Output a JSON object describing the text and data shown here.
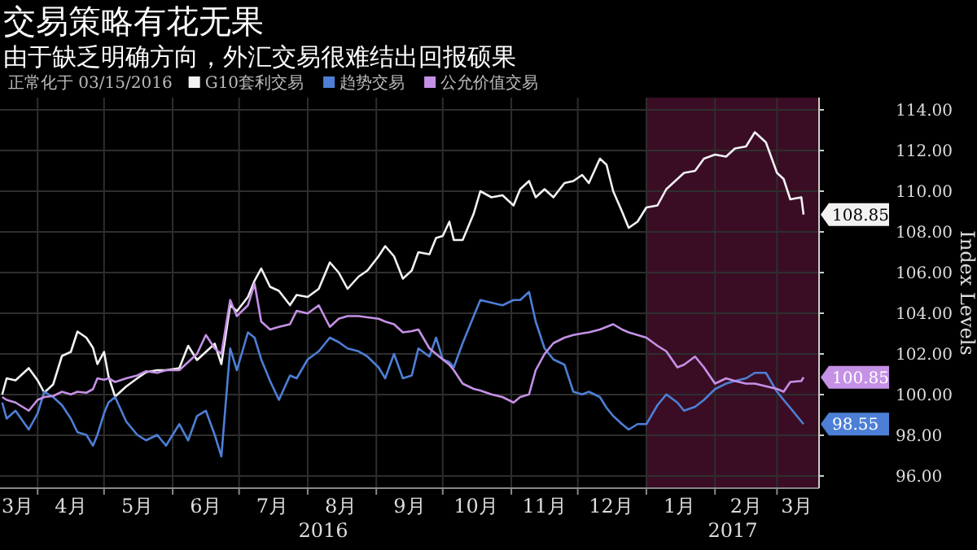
{
  "chart_data": {
    "type": "line",
    "title": "交易策略有花无果",
    "subtitle": "由于缺乏明确方向，外汇交易很难结出回报硕果",
    "legend_title": "正常化于 03/15/2016",
    "legend": "top left",
    "grid": true,
    "ylabel": "Index Levels",
    "x": [
      "2016-03-16",
      "2016-03-18",
      "2016-03-22",
      "2016-03-28",
      "2016-04-01",
      "2016-04-04",
      "2016-04-08",
      "2016-04-12",
      "2016-04-16",
      "2016-04-19",
      "2016-04-23",
      "2016-04-26",
      "2016-04-28",
      "2016-05-01",
      "2016-05-03",
      "2016-05-06",
      "2016-05-11",
      "2016-05-16",
      "2016-05-20",
      "2016-05-25",
      "2016-05-29",
      "2016-06-04",
      "2016-06-08",
      "2016-06-12",
      "2016-06-16",
      "2016-06-20",
      "2016-06-23",
      "2016-06-27",
      "2016-06-30",
      "2016-07-05",
      "2016-07-08",
      "2016-07-11",
      "2016-07-15",
      "2016-07-19",
      "2016-07-24",
      "2016-07-27",
      "2016-08-01",
      "2016-08-06",
      "2016-08-11",
      "2016-08-15",
      "2016-08-19",
      "2016-08-24",
      "2016-08-28",
      "2016-09-02",
      "2016-09-05",
      "2016-09-09",
      "2016-09-13",
      "2016-09-17",
      "2016-09-20",
      "2016-09-25",
      "2016-09-28",
      "2016-10-01",
      "2016-10-04",
      "2016-10-06",
      "2016-10-10",
      "2016-10-15",
      "2016-10-18",
      "2016-10-23",
      "2016-10-28",
      "2016-11-02",
      "2016-11-05",
      "2016-11-09",
      "2016-11-12",
      "2016-11-16",
      "2016-11-20",
      "2016-11-25",
      "2016-11-29",
      "2016-12-03",
      "2016-12-06",
      "2016-12-11",
      "2016-12-14",
      "2016-12-17",
      "2016-12-21",
      "2016-12-24",
      "2016-12-28",
      "2017-01-01",
      "2017-01-06",
      "2017-01-10",
      "2017-01-15",
      "2017-01-18",
      "2017-01-23",
      "2017-01-27",
      "2017-02-01",
      "2017-02-06",
      "2017-02-10",
      "2017-02-15",
      "2017-02-19",
      "2017-02-24",
      "2017-03-01",
      "2017-03-04",
      "2017-03-07",
      "2017-03-12",
      "2017-03-13"
    ],
    "xlim": [
      "2016-03-15",
      "2017-03-20"
    ],
    "xticks": [
      {
        "value": "2016-03-23",
        "label": "3月"
      },
      {
        "value": "2016-04-16",
        "label": "4月"
      },
      {
        "value": "2016-05-16",
        "label": "5月"
      },
      {
        "value": "2016-06-16",
        "label": "6月"
      },
      {
        "value": "2016-07-16",
        "label": "7月"
      },
      {
        "value": "2016-08-16",
        "label": "8月"
      },
      {
        "value": "2016-09-16",
        "label": "9月"
      },
      {
        "value": "2016-10-16",
        "label": "10月"
      },
      {
        "value": "2016-11-16",
        "label": "11月"
      },
      {
        "value": "2016-12-16",
        "label": "12月"
      },
      {
        "value": "2017-01-16",
        "label": "1月"
      },
      {
        "value": "2017-02-15",
        "label": "2月"
      },
      {
        "value": "2017-03-10",
        "label": "3月"
      },
      {
        "value": "2016-04-01",
        "label": null
      },
      {
        "value": "2016-05-01",
        "label": null
      },
      {
        "value": "2016-06-01",
        "label": null
      },
      {
        "value": "2016-07-01",
        "label": null
      },
      {
        "value": "2016-08-01",
        "label": null
      },
      {
        "value": "2016-09-01",
        "label": null
      },
      {
        "value": "2016-10-01",
        "label": null
      },
      {
        "value": "2016-11-01",
        "label": null
      },
      {
        "value": "2016-12-01",
        "label": null
      },
      {
        "value": "2017-01-01",
        "label": null
      },
      {
        "value": "2017-02-01",
        "label": null
      },
      {
        "value": "2017-03-01",
        "label": null
      }
    ],
    "ylim": [
      95.4,
      114.6
    ],
    "yticks": [
      {
        "value": 96,
        "label": "96.00"
      },
      {
        "value": 98,
        "label": "98.00"
      },
      {
        "value": 100,
        "label": "100.00"
      },
      {
        "value": 102,
        "label": "102.00"
      },
      {
        "value": 104,
        "label": "104.00"
      },
      {
        "value": 106,
        "label": "106.00"
      },
      {
        "value": 108,
        "label": "108.00"
      },
      {
        "value": 110,
        "label": "110.00"
      },
      {
        "value": 112,
        "label": "112.00"
      },
      {
        "value": 114,
        "label": "114.00"
      }
    ],
    "bands": [
      {
        "axis": "x",
        "from": "2017-01-01",
        "to": "2017-03-20",
        "color": "#3a0d25"
      }
    ],
    "annotations": [
      "2016",
      "2017"
    ],
    "series": [
      {
        "name": "G10套利交易",
        "color": "#f2f2f2",
        "values": [
          100.0,
          100.8,
          100.7,
          101.3,
          100.7,
          100.1,
          100.5,
          101.9,
          102.1,
          103.1,
          102.8,
          102.3,
          101.5,
          102.1,
          100.9,
          99.9,
          100.4,
          100.8,
          101.1,
          101.2,
          101.2,
          101.3,
          102.4,
          101.7,
          102.1,
          102.5,
          101.5,
          104.4,
          104.1,
          104.8,
          105.6,
          106.2,
          105.3,
          105.1,
          104.4,
          104.9,
          104.8,
          105.2,
          106.5,
          106.0,
          105.2,
          105.8,
          106.1,
          106.8,
          107.3,
          106.8,
          105.7,
          106.1,
          107.0,
          106.9,
          107.7,
          107.8,
          108.5,
          107.6,
          107.6,
          108.9,
          110.0,
          109.7,
          109.8,
          109.3,
          110.1,
          110.5,
          109.7,
          110.1,
          109.7,
          110.4,
          110.5,
          110.8,
          110.4,
          111.6,
          111.3,
          110.0,
          109.0,
          108.2,
          108.5,
          109.2,
          109.3,
          110.1,
          110.6,
          110.9,
          111.0,
          111.6,
          111.8,
          111.7,
          112.1,
          112.2,
          112.9,
          112.4,
          110.9,
          110.6,
          109.6,
          109.7,
          108.85
        ],
        "value_labels": [
          null,
          null,
          null,
          null,
          null,
          null,
          null,
          null,
          null,
          null,
          null,
          null,
          null,
          null,
          null,
          null,
          null,
          null,
          null,
          null,
          null,
          null,
          null,
          null,
          null,
          null,
          null,
          null,
          null,
          null,
          null,
          null,
          null,
          null,
          null,
          null,
          null,
          null,
          null,
          null,
          null,
          null,
          null,
          null,
          null,
          null,
          null,
          null,
          null,
          null,
          null,
          null,
          null,
          null,
          null,
          null,
          null,
          null,
          null,
          null,
          null,
          null,
          null,
          null,
          null,
          null,
          null,
          null,
          null,
          null,
          null,
          null,
          null,
          null,
          null,
          null,
          null,
          null,
          null,
          null,
          null,
          null,
          null,
          null,
          null,
          null,
          null,
          null,
          null,
          null,
          null,
          null,
          "108.85"
        ]
      },
      {
        "name": "趋势交易",
        "color": "#4d7fd6",
        "values": [
          99.61,
          98.82,
          99.21,
          98.28,
          99.08,
          100.14,
          99.88,
          99.48,
          98.82,
          98.15,
          98.02,
          97.49,
          98.02,
          99.08,
          99.61,
          99.88,
          98.68,
          98.02,
          97.75,
          98.02,
          97.49,
          98.55,
          97.75,
          98.95,
          99.21,
          98.02,
          96.96,
          102.27,
          101.2,
          103.06,
          102.8,
          101.73,
          100.67,
          99.74,
          100.94,
          100.8,
          101.73,
          102.13,
          102.8,
          102.58,
          102.27,
          102.13,
          101.87,
          101.34,
          100.8,
          102.0,
          100.8,
          100.94,
          102.27,
          101.87,
          102.8,
          101.73,
          101.6,
          101.34,
          102.53,
          103.86,
          104.65,
          104.52,
          104.39,
          104.65,
          104.65,
          105.05,
          103.59,
          102.27,
          101.73,
          101.47,
          100.14,
          100.01,
          100.14,
          99.88,
          99.35,
          98.95,
          98.55,
          98.28,
          98.55,
          98.55,
          99.48,
          100.01,
          99.61,
          99.21,
          99.4,
          99.74,
          100.27,
          100.54,
          100.67,
          100.8,
          101.07,
          101.07,
          100.14,
          99.74,
          99.35,
          98.68,
          98.55
        ],
        "value_labels": [
          null,
          null,
          null,
          null,
          null,
          null,
          null,
          null,
          null,
          null,
          null,
          null,
          null,
          null,
          null,
          null,
          null,
          null,
          null,
          null,
          null,
          null,
          null,
          null,
          null,
          null,
          null,
          null,
          null,
          null,
          null,
          null,
          null,
          null,
          null,
          null,
          null,
          null,
          null,
          null,
          null,
          null,
          null,
          null,
          null,
          null,
          null,
          null,
          null,
          null,
          null,
          null,
          null,
          null,
          null,
          null,
          null,
          null,
          null,
          null,
          null,
          null,
          null,
          null,
          null,
          null,
          null,
          null,
          null,
          null,
          null,
          null,
          null,
          null,
          null,
          null,
          null,
          null,
          null,
          null,
          null,
          null,
          null,
          null,
          null,
          null,
          null,
          null,
          null,
          null,
          null,
          null,
          "98.55"
        ]
      },
      {
        "name": "公允价值交易",
        "color": "#c591e6",
        "values": [
          99.88,
          99.74,
          99.61,
          99.21,
          99.74,
          99.88,
          99.93,
          100.14,
          100.01,
          100.14,
          100.09,
          100.27,
          100.8,
          100.73,
          100.8,
          100.62,
          100.8,
          100.94,
          101.15,
          101.07,
          101.2,
          101.2,
          101.6,
          102.0,
          102.93,
          102.27,
          102.0,
          104.65,
          103.86,
          104.39,
          105.45,
          103.59,
          103.2,
          103.33,
          103.46,
          104.12,
          103.99,
          104.39,
          103.33,
          103.73,
          103.86,
          103.86,
          103.8,
          103.73,
          103.59,
          103.46,
          103.06,
          103.12,
          103.2,
          102.27,
          102.0,
          101.73,
          101.47,
          101.2,
          100.54,
          100.28,
          100.2,
          100.01,
          99.88,
          99.61,
          99.88,
          100.01,
          101.2,
          102.0,
          102.53,
          102.8,
          102.93,
          103.01,
          103.06,
          103.2,
          103.33,
          103.46,
          103.2,
          103.06,
          102.93,
          102.8,
          102.4,
          102.13,
          101.34,
          101.47,
          101.87,
          101.34,
          100.54,
          100.8,
          100.67,
          100.54,
          100.54,
          100.41,
          100.28,
          100.14,
          100.62,
          100.67,
          100.85
        ],
        "value_labels": [
          null,
          null,
          null,
          null,
          null,
          null,
          null,
          null,
          null,
          null,
          null,
          null,
          null,
          null,
          null,
          null,
          null,
          null,
          null,
          null,
          null,
          null,
          null,
          null,
          null,
          null,
          null,
          null,
          null,
          null,
          null,
          null,
          null,
          null,
          null,
          null,
          null,
          null,
          null,
          null,
          null,
          null,
          null,
          null,
          null,
          null,
          null,
          null,
          null,
          null,
          null,
          null,
          null,
          null,
          null,
          null,
          null,
          null,
          null,
          null,
          null,
          null,
          null,
          null,
          null,
          null,
          null,
          null,
          null,
          null,
          null,
          null,
          null,
          null,
          null,
          null,
          null,
          null,
          null,
          null,
          null,
          null,
          null,
          null,
          null,
          null,
          null,
          null,
          null,
          null,
          null,
          null,
          "100.85"
        ]
      }
    ]
  }
}
